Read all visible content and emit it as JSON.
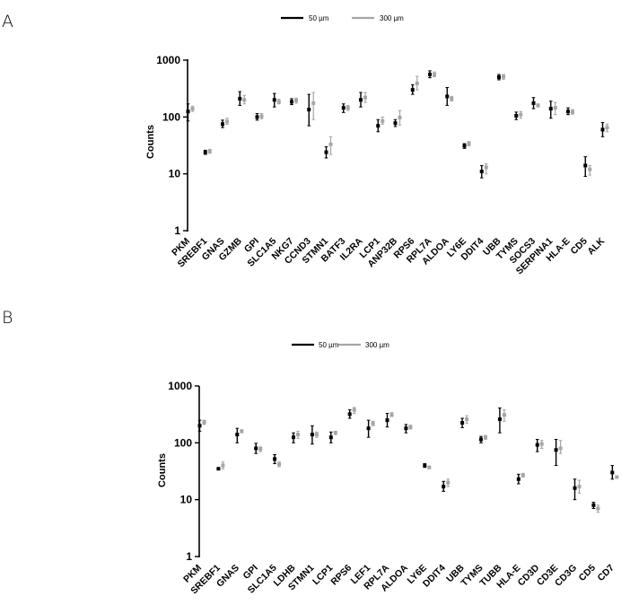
{
  "panels": [
    {
      "label": "A",
      "legend": [
        {
          "name": "50 µm",
          "color": "#000000"
        },
        {
          "name": "300 µm",
          "color": "#a6a6a6"
        }
      ],
      "chart_data": {
        "type": "scatter",
        "ylabel": "Counts",
        "yscale": "log",
        "ylim": [
          1,
          1000
        ],
        "ticks": [
          "1",
          "10",
          "100",
          "1000"
        ],
        "categories": [
          "PKM",
          "SREBF1",
          "GNAS",
          "GZMB",
          "GPI",
          "SLC1A5",
          "NKG7",
          "CCND3",
          "STMN1",
          "BATF3",
          "IL2RA",
          "LCP1",
          "ANP32B",
          "RPS6",
          "RPL7A",
          "ALDOA",
          "LY6E",
          "DDIT4",
          "UBB",
          "TYMS",
          "SOCS3",
          "SERPINA1",
          "HLA-E",
          "CD5",
          "ALK"
        ],
        "series": [
          {
            "name": "50 µm",
            "color": "#000000",
            "y": [
              125,
              24,
              75,
              210,
              100,
              200,
              185,
              135,
              24,
              145,
              200,
              70,
              78,
              300,
              560,
              230,
              31,
              11,
              500,
              105,
              175,
              140,
              125,
              14,
              60
            ],
            "ylow": [
              85,
              22,
              65,
              160,
              88,
              150,
              165,
              70,
              19,
              120,
              150,
              55,
              68,
              250,
              490,
              160,
              28,
              8.5,
              450,
              90,
              140,
              95,
              110,
              9,
              45
            ],
            "yhigh": [
              170,
              26,
              88,
              280,
              115,
              260,
              210,
              250,
              30,
              170,
              270,
              90,
              90,
              370,
              650,
              330,
              34,
              14,
              560,
              122,
              220,
              190,
              145,
              20,
              80
            ]
          },
          {
            "name": "300 µm",
            "color": "#a6a6a6",
            "y": [
              140,
              25,
              83,
              200,
              103,
              185,
              195,
              175,
              33,
              145,
              220,
              85,
              98,
              390,
              560,
              210,
              34,
              13,
              510,
              110,
              160,
              145,
              123,
              12,
              65
            ],
            "ylow": [
              125,
              23,
              74,
              170,
              93,
              170,
              175,
              90,
              22,
              130,
              180,
              75,
              72,
              300,
              510,
              190,
              31,
              10,
              460,
              95,
              150,
              110,
              112,
              9.5,
              55
            ],
            "yhigh": [
              155,
              27,
              95,
              240,
              115,
              205,
              215,
              270,
              45,
              160,
              270,
              100,
              130,
              520,
              620,
              230,
              37,
              15,
              560,
              125,
              170,
              180,
              135,
              14,
              75
            ]
          }
        ]
      }
    },
    {
      "label": "B",
      "legend": [
        {
          "name": "50 µm",
          "color": "#000000"
        },
        {
          "name": "300 µm",
          "color": "#a6a6a6"
        }
      ],
      "chart_data": {
        "type": "scatter",
        "ylabel": "Counts",
        "yscale": "log",
        "ylim": [
          1,
          1000
        ],
        "ticks": [
          "1",
          "10",
          "100",
          "1000"
        ],
        "categories": [
          "PKM",
          "SREBF1",
          "GNAS",
          "GPI",
          "SLC1A5",
          "LDHB",
          "STMN1",
          "LCP1",
          "RPS6",
          "LEF1",
          "RPL7A",
          "ALDOA",
          "LY6E",
          "DDIT4",
          "UBB",
          "TYMS",
          "TUBB",
          "HLA-E",
          "CD3D",
          "CD3E",
          "CD3G",
          "CD5",
          "CD7"
        ],
        "series": [
          {
            "name": "50 µm",
            "color": "#000000",
            "y": [
              200,
              35,
              140,
              80,
              52,
              125,
              140,
              125,
              320,
              180,
              250,
              180,
              40,
              17,
              225,
              115,
              260,
              23,
              92,
              75,
              16,
              8,
              30
            ],
            "ylow": [
              160,
              34,
              100,
              65,
              43,
              100,
              95,
              100,
              270,
              125,
              190,
              150,
              37,
              14,
              185,
              100,
              150,
              19,
              70,
              40,
              10,
              7,
              23
            ],
            "yhigh": [
              250,
              36,
              180,
              98,
              62,
              150,
              200,
              155,
              380,
              250,
              330,
              210,
              43,
              21,
              270,
              130,
              410,
              28,
              115,
              115,
              23,
              9,
              40
            ]
          },
          {
            "name": "300 µm",
            "color": "#a6a6a6",
            "y": [
              230,
              40,
              160,
              78,
              42,
              140,
              140,
              150,
              380,
              220,
              310,
              190,
              37,
              20,
              260,
              125,
              310,
              27,
              95,
              80,
              17,
              7,
              25
            ],
            "ylow": [
              210,
              35,
              150,
              70,
              38,
              120,
              125,
              140,
              330,
              200,
              290,
              175,
              35,
              17,
              220,
              115,
              240,
              25,
              80,
              65,
              13,
              6,
              24
            ],
            "yhigh": [
              250,
              46,
              170,
              85,
              46,
              160,
              155,
              160,
              420,
              240,
              340,
              205,
              39,
              23,
              300,
              135,
              380,
              29,
              110,
              110,
              22,
              8,
              26
            ]
          }
        ]
      }
    }
  ]
}
